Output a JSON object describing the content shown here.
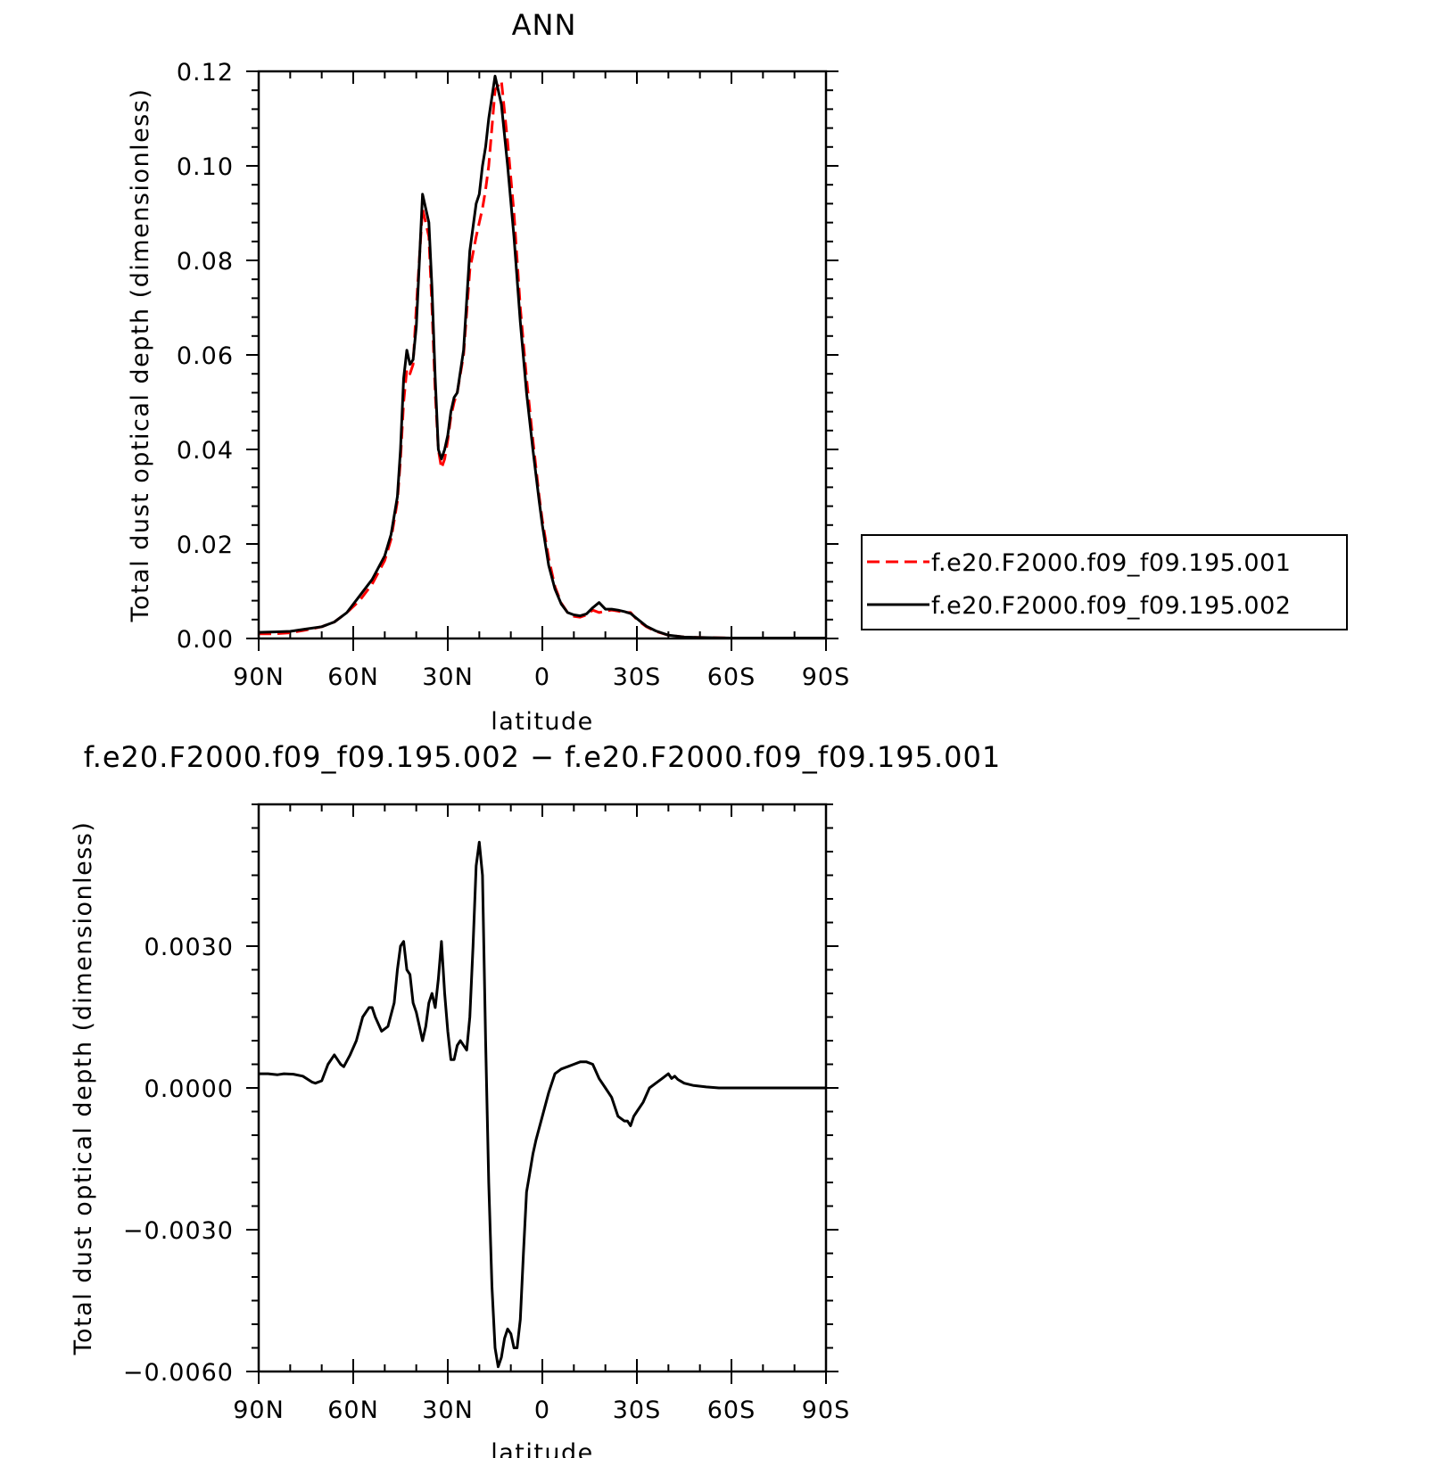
{
  "chart_data": [
    {
      "type": "line",
      "title": "ANN",
      "xlabel": "latitude",
      "ylabel": "Total dust optical depth (dimensionless)",
      "xlim": [
        90,
        -90
      ],
      "ylim": [
        0,
        0.12
      ],
      "x_ticks": [
        90,
        60,
        30,
        0,
        -30,
        -60,
        -90
      ],
      "x_tick_labels": [
        "90N",
        "60N",
        "30N",
        "0",
        "30S",
        "60S",
        "90S"
      ],
      "y_ticks": [
        0,
        0.02,
        0.04,
        0.06,
        0.08,
        0.1,
        0.12
      ],
      "y_tick_labels": [
        "0.00",
        "0.02",
        "0.04",
        "0.06",
        "0.08",
        "0.10",
        "0.12"
      ],
      "grid": false,
      "legend": {
        "placement": "right",
        "entries": [
          "f.e20.F2000.f09_f09.195.001",
          "f.e20.F2000.f09_f09.195.002"
        ]
      },
      "series": [
        {
          "name": "f.e20.F2000.f09_f09.195.001",
          "color": "#ff0000",
          "dash": "dashed",
          "x": [
            90,
            85,
            80,
            75,
            70,
            66,
            62,
            58,
            54,
            50,
            48,
            46,
            45,
            44,
            43,
            42,
            41,
            40,
            38,
            36,
            35,
            34,
            33,
            32,
            31,
            30,
            29,
            28,
            27,
            25,
            23,
            21,
            20,
            19,
            18,
            17,
            15,
            13,
            11,
            9,
            7,
            5,
            3,
            1,
            0,
            -2,
            -4,
            -6,
            -8,
            -10,
            -12,
            -14,
            -16,
            -18,
            -20,
            -22,
            -24,
            -26,
            -28,
            -30,
            -33,
            -36,
            -40,
            -45,
            -50,
            -60,
            -70,
            -80,
            -90
          ],
          "y": [
            0.001,
            0.001,
            0.0012,
            0.0018,
            0.0025,
            0.0035,
            0.0055,
            0.008,
            0.0115,
            0.0165,
            0.021,
            0.029,
            0.038,
            0.05,
            0.057,
            0.056,
            0.058,
            0.07,
            0.091,
            0.085,
            0.07,
            0.052,
            0.04,
            0.036,
            0.038,
            0.042,
            0.047,
            0.05,
            0.052,
            0.06,
            0.078,
            0.085,
            0.088,
            0.091,
            0.095,
            0.1,
            0.116,
            0.118,
            0.105,
            0.09,
            0.07,
            0.055,
            0.042,
            0.03,
            0.025,
            0.017,
            0.011,
            0.0075,
            0.0055,
            0.0047,
            0.0045,
            0.005,
            0.006,
            0.0055,
            0.0058,
            0.006,
            0.0058,
            0.0055,
            0.0055,
            0.004,
            0.0025,
            0.0015,
            0.0007,
            0.0003,
            0.0002,
            0.0001,
            0.0001,
            0.0001,
            0.0001
          ]
        },
        {
          "name": "f.e20.F2000.f09_f09.195.002",
          "color": "#000000",
          "dash": "solid",
          "x": [
            90,
            85,
            80,
            75,
            70,
            66,
            62,
            58,
            54,
            50,
            48,
            46,
            45,
            44,
            43,
            42,
            41,
            40,
            38,
            36,
            35,
            34,
            33,
            32,
            31,
            30,
            29,
            28,
            27,
            25,
            23,
            21,
            20,
            19,
            18,
            17,
            15,
            13,
            11,
            9,
            7,
            5,
            3,
            1,
            0,
            -2,
            -4,
            -6,
            -8,
            -10,
            -12,
            -14,
            -16,
            -18,
            -20,
            -22,
            -24,
            -26,
            -28,
            -30,
            -33,
            -36,
            -40,
            -45,
            -50,
            -60,
            -70,
            -80,
            -90
          ],
          "y": [
            0.0013,
            0.0014,
            0.0015,
            0.002,
            0.0025,
            0.0035,
            0.0055,
            0.009,
            0.0125,
            0.0175,
            0.022,
            0.03,
            0.04,
            0.055,
            0.061,
            0.058,
            0.059,
            0.066,
            0.094,
            0.088,
            0.074,
            0.055,
            0.04,
            0.038,
            0.04,
            0.043,
            0.048,
            0.051,
            0.052,
            0.061,
            0.082,
            0.092,
            0.094,
            0.1,
            0.104,
            0.11,
            0.119,
            0.113,
            0.1,
            0.085,
            0.067,
            0.052,
            0.04,
            0.029,
            0.024,
            0.0155,
            0.0105,
            0.0073,
            0.0055,
            0.005,
            0.0048,
            0.0052,
            0.0065,
            0.0076,
            0.0062,
            0.0062,
            0.006,
            0.0057,
            0.0053,
            0.0042,
            0.0026,
            0.0016,
            0.0007,
            0.0003,
            0.0002,
            0.0001,
            0.0001,
            0.0001,
            0.0001
          ]
        }
      ]
    },
    {
      "type": "line",
      "title": "f.e20.F2000.f09_f09.195.002 − f.e20.F2000.f09_f09.195.001",
      "xlabel": "latitude",
      "ylabel": "Total dust optical depth (dimensionless)",
      "xlim": [
        90,
        -90
      ],
      "ylim": [
        -0.006,
        0.006
      ],
      "x_ticks": [
        90,
        60,
        30,
        0,
        -30,
        -60,
        -90
      ],
      "x_tick_labels": [
        "90N",
        "60N",
        "30N",
        "0",
        "30S",
        "60S",
        "90S"
      ],
      "y_ticks": [
        -0.006,
        -0.003,
        0,
        0.003
      ],
      "y_tick_labels": [
        "−0.0060",
        "−0.0030",
        "0.0000",
        "0.0030"
      ],
      "grid": false,
      "series": [
        {
          "color": "#000000",
          "dash": "solid",
          "x": [
            90,
            87,
            84,
            82,
            79,
            76,
            73,
            72,
            70,
            68,
            66,
            64,
            63,
            61,
            59,
            57,
            55,
            54,
            53,
            51,
            49,
            47,
            46,
            45,
            44,
            43,
            42,
            41,
            40,
            39,
            38,
            37,
            36,
            35,
            34,
            33,
            32,
            31,
            30,
            29,
            28,
            27,
            26,
            25,
            24,
            23,
            22,
            21,
            20,
            19,
            18,
            17,
            16,
            15,
            14,
            13,
            12,
            11,
            10,
            9,
            8,
            7,
            6,
            5,
            4,
            3,
            2,
            0,
            -2,
            -4,
            -6,
            -8,
            -10,
            -12,
            -14,
            -16,
            -18,
            -20,
            -22,
            -24,
            -26,
            -27,
            -28,
            -29,
            -30,
            -32,
            -34,
            -36,
            -38,
            -40,
            -41,
            -42,
            -43,
            -45,
            -48,
            -52,
            -56,
            -60,
            -70,
            -80,
            -90
          ],
          "y": [
            0.0003,
            0.0003,
            0.00028,
            0.0003,
            0.00029,
            0.00025,
            0.00012,
            0.0001,
            0.00015,
            0.0005,
            0.0007,
            0.0005,
            0.00045,
            0.0007,
            0.001,
            0.0015,
            0.0017,
            0.0017,
            0.0015,
            0.0012,
            0.0013,
            0.0018,
            0.0025,
            0.003,
            0.0031,
            0.0025,
            0.0024,
            0.0018,
            0.0016,
            0.0013,
            0.001,
            0.0013,
            0.0018,
            0.002,
            0.0017,
            0.0023,
            0.0031,
            0.002,
            0.0012,
            0.0006,
            0.0006,
            0.0009,
            0.001,
            0.0009,
            0.0008,
            0.0015,
            0.003,
            0.0047,
            0.0052,
            0.0045,
            0.001,
            -0.002,
            -0.0042,
            -0.0055,
            -0.0059,
            -0.0057,
            -0.0053,
            -0.0051,
            -0.0052,
            -0.0055,
            -0.0055,
            -0.0049,
            -0.0035,
            -0.0022,
            -0.0018,
            -0.0014,
            -0.0011,
            -0.0006,
            -0.0001,
            0.0003,
            0.0004,
            0.00045,
            0.0005,
            0.00055,
            0.00055,
            0.0005,
            0.0002,
            0.0,
            -0.0002,
            -0.0006,
            -0.0007,
            -0.0007,
            -0.0008,
            -0.0006,
            -0.0005,
            -0.0003,
            0.0,
            0.0001,
            0.0002,
            0.0003,
            0.0002,
            0.00025,
            0.00018,
            0.0001,
            5e-05,
            2e-05,
            0.0,
            0.0,
            0.0,
            0.0,
            0.0
          ]
        }
      ]
    }
  ]
}
